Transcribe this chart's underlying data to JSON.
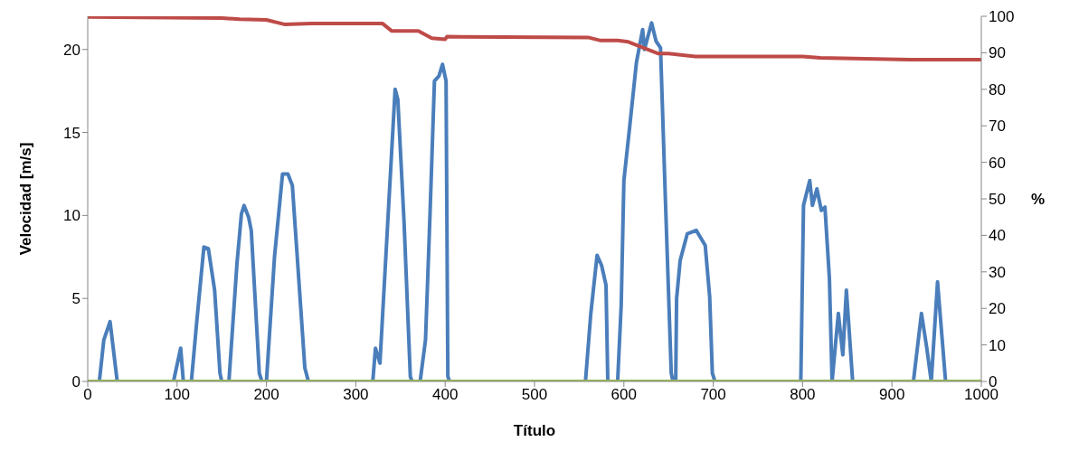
{
  "chart_data": {
    "type": "line",
    "xlabel": "Título",
    "ylabel": "Velocidad [m/s]",
    "y2label": "%",
    "xlim": [
      0,
      1000
    ],
    "xticks": [
      0,
      100,
      200,
      300,
      400,
      500,
      600,
      700,
      800,
      900,
      1000
    ],
    "ylim": [
      0,
      22
    ],
    "yticks": [
      0,
      5,
      10,
      15,
      20
    ],
    "y2lim": [
      0,
      100
    ],
    "y2ticks": [
      0,
      10,
      20,
      30,
      40,
      50,
      60,
      70,
      80,
      90,
      100
    ],
    "marker": "none",
    "line_style": "solid",
    "series": [
      {
        "color": "#4a7ebb",
        "x": [
          0,
          13,
          18,
          25,
          33,
          96,
          104,
          107,
          116,
          122,
          130,
          135,
          142,
          148,
          150,
          158,
          167,
          172,
          175,
          180,
          183,
          192,
          195,
          200,
          209,
          218,
          224,
          229,
          243,
          247,
          319,
          322,
          327,
          344,
          347,
          354,
          361,
          363,
          372,
          378,
          383,
          388,
          393,
          397,
          401,
          403,
          405,
          557,
          563,
          570,
          575,
          580,
          582,
          593,
          597,
          600,
          607,
          614,
          621,
          623,
          631,
          636,
          641,
          646,
          653,
          655,
          658,
          659,
          663,
          671,
          681,
          691,
          696,
          699,
          702,
          798,
          801,
          808,
          811,
          816,
          821,
          825,
          830,
          833,
          840,
          845,
          849,
          856,
          924,
          933,
          939,
          944,
          951,
          960,
          1000
        ],
        "values": [
          0,
          0,
          2.5,
          3.6,
          0,
          0,
          2,
          0,
          0,
          3.6,
          8.1,
          8,
          5.5,
          0.5,
          0,
          0,
          7.1,
          10.1,
          10.6,
          9.9,
          9.1,
          0.5,
          0,
          0,
          7.5,
          12.5,
          12.5,
          11.8,
          0.8,
          0,
          0,
          2,
          1.1,
          17.6,
          17,
          9.6,
          0.3,
          0,
          0,
          2.5,
          10,
          18.1,
          18.4,
          19.1,
          18.1,
          0.3,
          0,
          0,
          4.1,
          7.6,
          7,
          5.8,
          0,
          0,
          4.6,
          12.1,
          15.6,
          19.2,
          21.2,
          20,
          21.6,
          20.5,
          20.1,
          11.7,
          0.5,
          0,
          0,
          5,
          7.3,
          8.9,
          9.1,
          8.2,
          5.1,
          0.5,
          0,
          0,
          10.6,
          12.1,
          10.6,
          11.6,
          10.3,
          10.5,
          6.2,
          0,
          4.1,
          1.6,
          5.5,
          0,
          0,
          4.1,
          2,
          0,
          6,
          0,
          0
        ]
      },
      {
        "color": "#be4b48",
        "axis": "y2",
        "x": [
          0,
          150,
          170,
          200,
          220,
          250,
          330,
          340,
          370,
          385,
          400,
          402,
          560,
          573,
          593,
          605,
          638,
          650,
          680,
          800,
          820,
          920,
          1000
        ],
        "values": [
          99.8,
          99.5,
          99.2,
          99,
          97.8,
          98,
          98,
          96,
          96,
          94,
          93.7,
          94.4,
          94.2,
          93.4,
          93.4,
          93,
          89.8,
          89.8,
          89,
          89,
          88.6,
          88.1,
          88.1
        ]
      },
      {
        "color": "#98b954",
        "x": [
          0,
          1000
        ],
        "values": [
          0,
          0
        ]
      }
    ]
  }
}
